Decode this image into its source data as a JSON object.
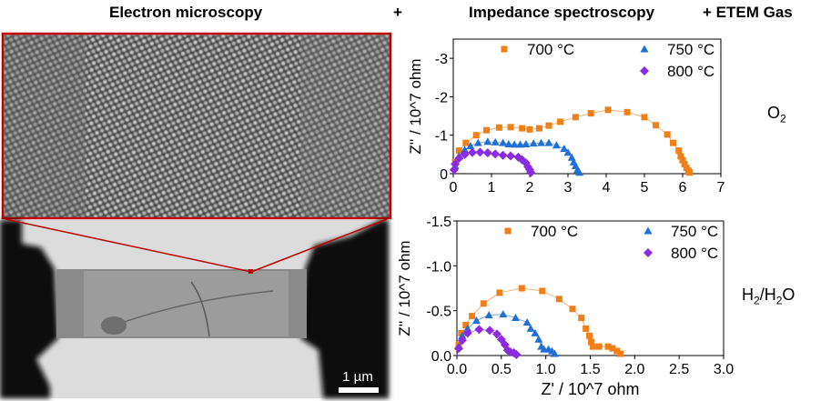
{
  "header": {
    "left": "Electron microscopy",
    "plus1": "+",
    "middle": "Impedance spectroscopy",
    "right": "+  ETEM Gas"
  },
  "microscopy": {
    "scale_bar": "1 µm",
    "zoom_frame_color": "#c00000"
  },
  "gases": {
    "top": {
      "main": "O",
      "sub": "2"
    },
    "bottom": {
      "p1": "H",
      "s1": "2",
      "p2": "/H",
      "s2": "2",
      "p3": "O"
    }
  },
  "chart_data": [
    {
      "type": "scatter",
      "title": "",
      "ylabel": "Z'' / 10^7 ohm",
      "xlabel": "",
      "xlim": [
        0,
        7
      ],
      "ylim": [
        0,
        -3.5
      ],
      "xticks": [
        "0",
        "1",
        "2",
        "3",
        "4",
        "5",
        "6",
        "7"
      ],
      "yticks": [
        "0",
        "-1",
        "-2",
        "-3"
      ],
      "ytick_values": [
        0,
        -1,
        -2,
        -3
      ],
      "legend": "top",
      "series": [
        {
          "name": "700 °C",
          "color": "#f07f17",
          "marker": "square",
          "points": [
            [
              0.05,
              -0.3
            ],
            [
              0.15,
              -0.6
            ],
            [
              0.33,
              -0.8
            ],
            [
              0.6,
              -1.0
            ],
            [
              0.87,
              -1.13
            ],
            [
              1.2,
              -1.2
            ],
            [
              1.5,
              -1.21
            ],
            [
              1.8,
              -1.18
            ],
            [
              2.0,
              -1.15
            ],
            [
              2.25,
              -1.18
            ],
            [
              2.5,
              -1.25
            ],
            [
              2.8,
              -1.35
            ],
            [
              3.2,
              -1.47
            ],
            [
              3.6,
              -1.57
            ],
            [
              4.05,
              -1.66
            ],
            [
              4.55,
              -1.6
            ],
            [
              5.0,
              -1.47
            ],
            [
              5.3,
              -1.26
            ],
            [
              5.6,
              -1.02
            ],
            [
              5.75,
              -0.8
            ],
            [
              5.9,
              -0.6
            ],
            [
              5.95,
              -0.45
            ],
            [
              6.0,
              -0.35
            ],
            [
              6.05,
              -0.25
            ],
            [
              6.1,
              -0.15
            ],
            [
              6.15,
              -0.08
            ],
            [
              6.18,
              -0.03
            ]
          ]
        },
        {
          "name": "750 °C",
          "color": "#1f6fd6",
          "marker": "triangle",
          "points": [
            [
              0.05,
              -0.2
            ],
            [
              0.15,
              -0.45
            ],
            [
              0.3,
              -0.62
            ],
            [
              0.45,
              -0.72
            ],
            [
              0.65,
              -0.8
            ],
            [
              0.9,
              -0.83
            ],
            [
              1.1,
              -0.82
            ],
            [
              1.3,
              -0.8
            ],
            [
              1.45,
              -0.77
            ],
            [
              1.6,
              -0.76
            ],
            [
              1.75,
              -0.76
            ],
            [
              1.9,
              -0.77
            ],
            [
              2.1,
              -0.79
            ],
            [
              2.3,
              -0.8
            ],
            [
              2.5,
              -0.8
            ],
            [
              2.7,
              -0.74
            ],
            [
              2.9,
              -0.65
            ],
            [
              3.0,
              -0.55
            ],
            [
              3.1,
              -0.42
            ],
            [
              3.15,
              -0.3
            ],
            [
              3.2,
              -0.2
            ],
            [
              3.25,
              -0.1
            ],
            [
              3.3,
              -0.03
            ]
          ]
        },
        {
          "name": "800 °C",
          "color": "#8a2be2",
          "marker": "diamond",
          "points": [
            [
              0.02,
              -0.1
            ],
            [
              0.05,
              -0.25
            ],
            [
              0.15,
              -0.4
            ],
            [
              0.3,
              -0.5
            ],
            [
              0.5,
              -0.55
            ],
            [
              0.7,
              -0.56
            ],
            [
              0.9,
              -0.54
            ],
            [
              1.1,
              -0.51
            ],
            [
              1.3,
              -0.48
            ],
            [
              1.5,
              -0.46
            ],
            [
              1.7,
              -0.43
            ],
            [
              1.8,
              -0.36
            ],
            [
              1.9,
              -0.28
            ],
            [
              1.95,
              -0.18
            ],
            [
              2.0,
              -0.1
            ],
            [
              2.03,
              -0.03
            ]
          ]
        }
      ]
    },
    {
      "type": "scatter",
      "title": "",
      "ylabel": "Z'' / 10^7 ohm",
      "xlabel": "Z' / 10^7 ohm",
      "xlim": [
        0,
        3.0
      ],
      "ylim": [
        0,
        -1.5
      ],
      "xticks": [
        "0.0",
        "0.5",
        "1.0",
        "1.5",
        "2.0",
        "2.5",
        "3.0"
      ],
      "yticks": [
        "0.0",
        "-0.5",
        "-1.0",
        "-1.5"
      ],
      "ytick_values": [
        0,
        -0.5,
        -1.0,
        -1.5
      ],
      "legend": "top",
      "series": [
        {
          "name": "700 °C",
          "color": "#f07f17",
          "marker": "square",
          "points": [
            [
              0.02,
              -0.12
            ],
            [
              0.05,
              -0.25
            ],
            [
              0.1,
              -0.34
            ],
            [
              0.17,
              -0.44
            ],
            [
              0.3,
              -0.58
            ],
            [
              0.48,
              -0.7
            ],
            [
              0.73,
              -0.75
            ],
            [
              0.96,
              -0.72
            ],
            [
              1.15,
              -0.63
            ],
            [
              1.3,
              -0.52
            ],
            [
              1.4,
              -0.42
            ],
            [
              1.45,
              -0.3
            ],
            [
              1.49,
              -0.22
            ],
            [
              1.51,
              -0.15
            ],
            [
              1.53,
              -0.1
            ],
            [
              1.6,
              -0.1
            ],
            [
              1.7,
              -0.1
            ],
            [
              1.75,
              -0.08
            ],
            [
              1.8,
              -0.05
            ],
            [
              1.84,
              -0.02
            ]
          ]
        },
        {
          "name": "750 °C",
          "color": "#1f6fd6",
          "marker": "triangle",
          "points": [
            [
              0.02,
              -0.1
            ],
            [
              0.06,
              -0.22
            ],
            [
              0.12,
              -0.3
            ],
            [
              0.22,
              -0.39
            ],
            [
              0.36,
              -0.45
            ],
            [
              0.52,
              -0.46
            ],
            [
              0.66,
              -0.42
            ],
            [
              0.79,
              -0.37
            ],
            [
              0.83,
              -0.3
            ],
            [
              0.88,
              -0.25
            ],
            [
              0.92,
              -0.18
            ],
            [
              0.95,
              -0.1
            ],
            [
              0.98,
              -0.07
            ],
            [
              1.03,
              -0.07
            ],
            [
              1.07,
              -0.05
            ],
            [
              1.1,
              -0.02
            ]
          ]
        },
        {
          "name": "800 °C",
          "color": "#8a2be2",
          "marker": "diamond",
          "points": [
            [
              0.02,
              -0.08
            ],
            [
              0.06,
              -0.17
            ],
            [
              0.12,
              -0.25
            ],
            [
              0.25,
              -0.29
            ],
            [
              0.37,
              -0.28
            ],
            [
              0.45,
              -0.24
            ],
            [
              0.5,
              -0.18
            ],
            [
              0.54,
              -0.12
            ],
            [
              0.57,
              -0.06
            ],
            [
              0.6,
              -0.04
            ],
            [
              0.64,
              -0.03
            ],
            [
              0.67,
              -0.01
            ]
          ]
        }
      ]
    }
  ]
}
